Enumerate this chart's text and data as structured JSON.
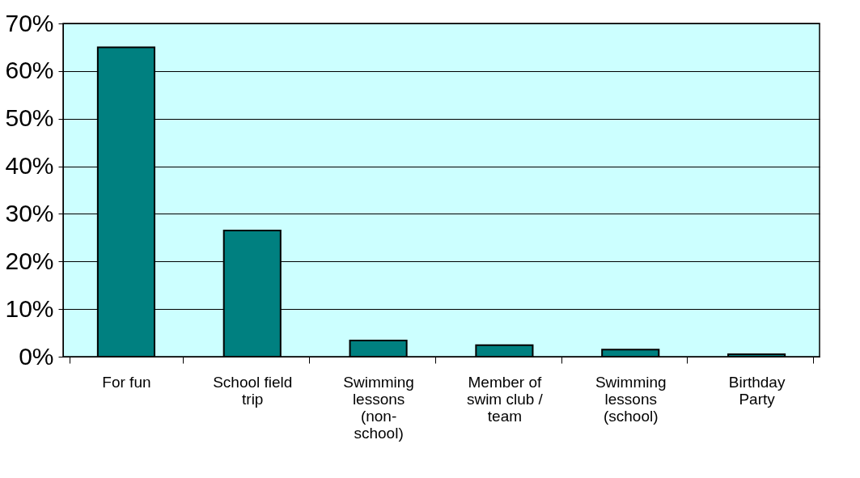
{
  "chart_data": {
    "type": "bar",
    "categories": [
      "For fun",
      "School field\ntrip",
      "Swimming\nlessons\n(non-\nschool)",
      "Member of\nswim club /\nteam",
      "Swimming\nlessons\n(school)",
      "Birthday\nParty"
    ],
    "values": [
      65,
      26.5,
      3.4,
      2.4,
      1.5,
      0.5
    ],
    "color": "#008080",
    "ylim": [
      0,
      70
    ],
    "yticks": [
      {
        "value": 0,
        "label": "0%"
      },
      {
        "value": 10,
        "label": "10%"
      },
      {
        "value": 20,
        "label": "20%"
      },
      {
        "value": 30,
        "label": "30%"
      },
      {
        "value": 40,
        "label": "40%"
      },
      {
        "value": 50,
        "label": "50%"
      },
      {
        "value": 60,
        "label": "60%"
      },
      {
        "value": 70,
        "label": "70%"
      }
    ],
    "grid": "y"
  }
}
